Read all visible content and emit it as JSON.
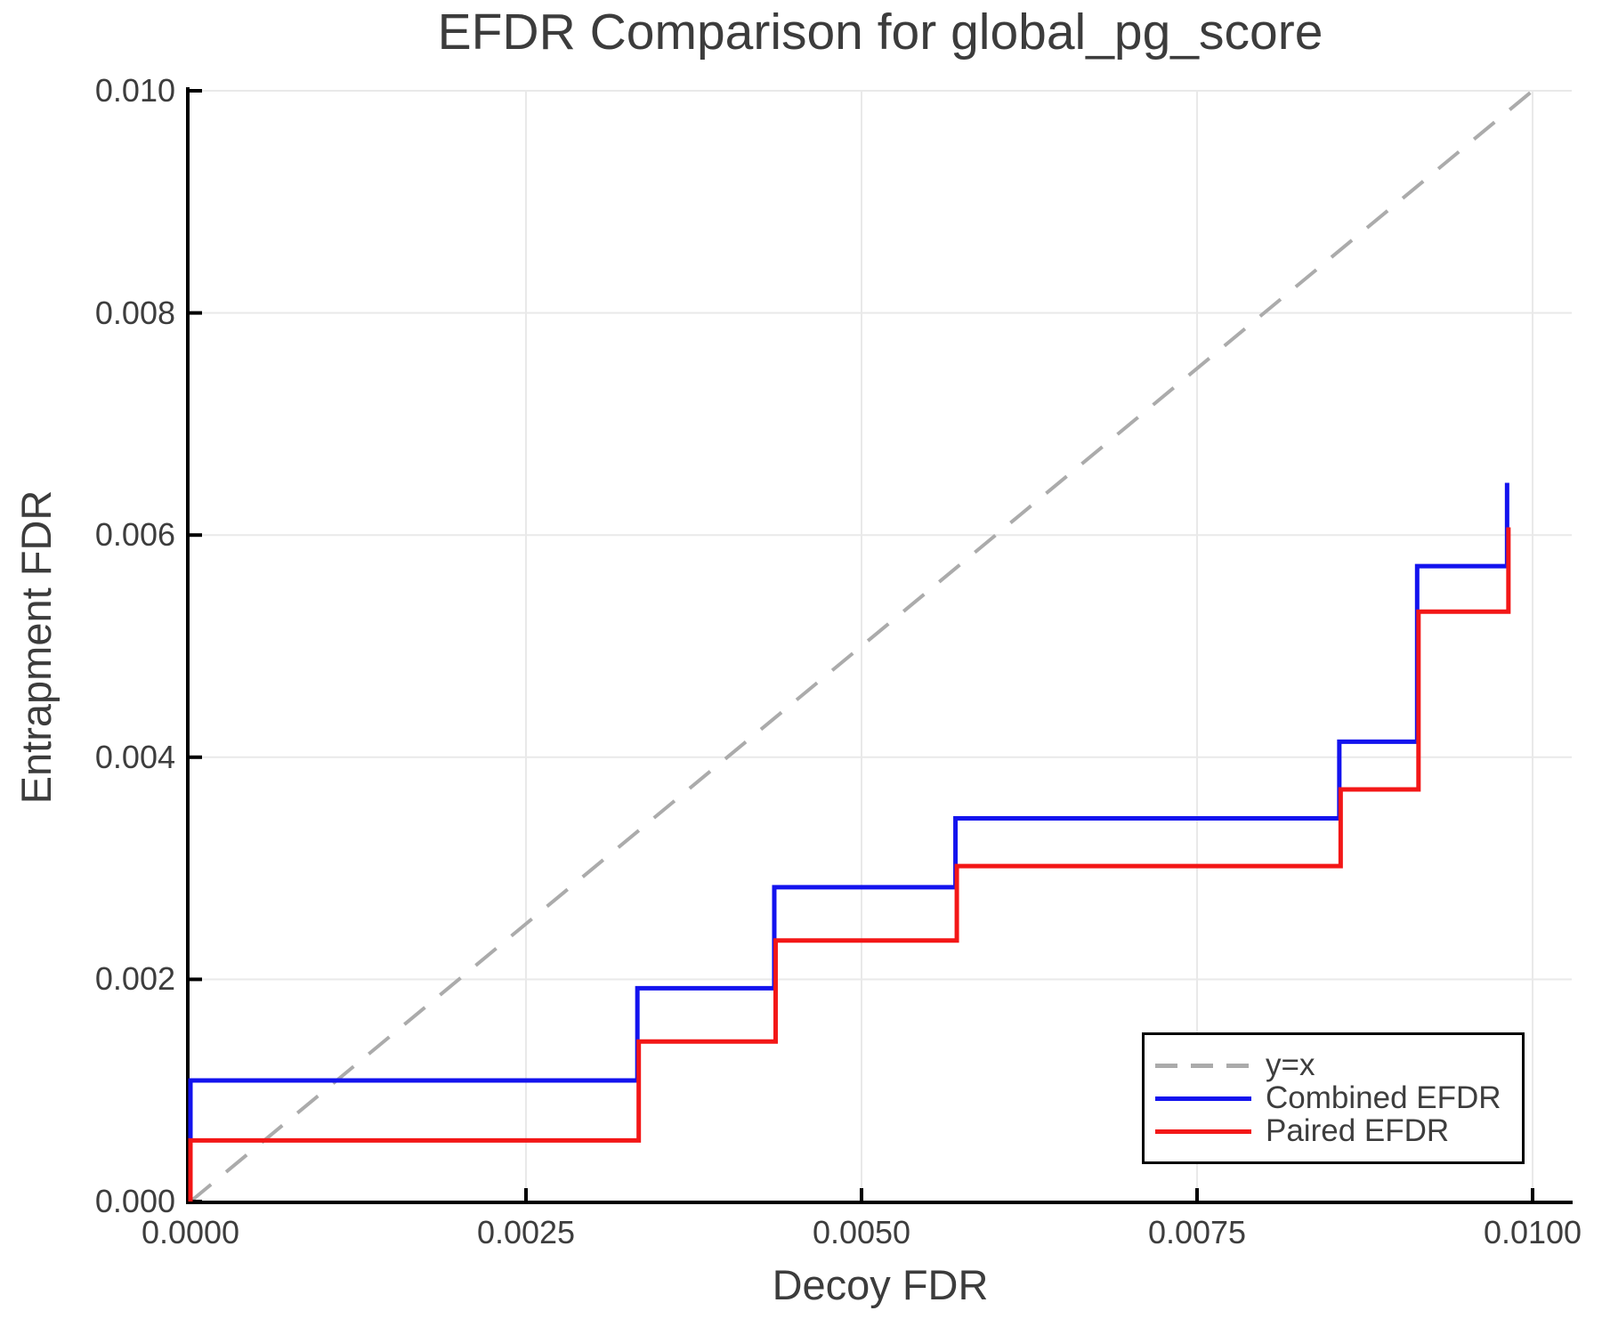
{
  "chart_data": {
    "type": "line",
    "subtype": "step",
    "title": "EFDR Comparison for global_pg_score",
    "xlabel": "Decoy FDR",
    "ylabel": "Entrapment FDR",
    "xlim": [
      0.0,
      0.01
    ],
    "ylim": [
      0.0,
      0.01
    ],
    "grid": true,
    "legend_position": "bottom-right",
    "x_ticks": [
      "0.0000",
      "0.0025",
      "0.0050",
      "0.0075",
      "0.0100"
    ],
    "y_ticks": [
      "0.000",
      "0.002",
      "0.004",
      "0.006",
      "0.008",
      "0.010"
    ],
    "colors": {
      "grid": "#e9e9e9",
      "spine": "#000000",
      "text": "#3d3d3d",
      "identity_line": "#ababab",
      "combined": "#1313ee",
      "paired": "#f31717"
    },
    "series": [
      {
        "name": "y=x",
        "color": "#ababab",
        "style": "dashed",
        "points": [
          [
            0.0,
            0.0
          ],
          [
            0.01,
            0.01
          ]
        ]
      },
      {
        "name": "Combined EFDR",
        "color": "#1313ee",
        "style": "solid",
        "points": [
          [
            0.0,
            0.0
          ],
          [
            0.0,
            0.00109
          ],
          [
            0.00333,
            0.00109
          ],
          [
            0.00333,
            0.00192
          ],
          [
            0.00435,
            0.00192
          ],
          [
            0.00435,
            0.00283
          ],
          [
            0.0057,
            0.00283
          ],
          [
            0.0057,
            0.00345
          ],
          [
            0.00856,
            0.00345
          ],
          [
            0.00856,
            0.00414
          ],
          [
            0.00914,
            0.00414
          ],
          [
            0.00914,
            0.00572
          ],
          [
            0.00981,
            0.00572
          ],
          [
            0.00981,
            0.00647
          ]
        ]
      },
      {
        "name": "Paired EFDR",
        "color": "#f31717",
        "style": "solid",
        "points": [
          [
            0.0,
            0.0
          ],
          [
            0.0,
            0.00055
          ],
          [
            0.00334,
            0.00055
          ],
          [
            0.00334,
            0.00144
          ],
          [
            0.00436,
            0.00144
          ],
          [
            0.00436,
            0.00235
          ],
          [
            0.00571,
            0.00235
          ],
          [
            0.00571,
            0.00302
          ],
          [
            0.00857,
            0.00302
          ],
          [
            0.00857,
            0.00371
          ],
          [
            0.00915,
            0.00371
          ],
          [
            0.00915,
            0.00531
          ],
          [
            0.00982,
            0.00531
          ],
          [
            0.00982,
            0.00607
          ]
        ]
      }
    ]
  }
}
